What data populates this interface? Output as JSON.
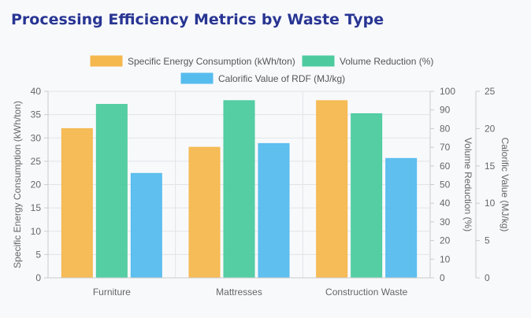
{
  "chart_data": {
    "type": "bar",
    "title": "Processing Efficiency Metrics by Waste Type",
    "categories": [
      "Furniture",
      "Mattresses",
      "Construction Waste"
    ],
    "series": [
      {
        "name": "Specific Energy Consumption (kWh/ton)",
        "axis": "left",
        "color": "#f5b84e",
        "values": [
          32,
          28,
          38
        ]
      },
      {
        "name": "Volume Reduction (%)",
        "axis": "right1",
        "color": "#4dcb9f",
        "values": [
          93,
          95,
          88
        ]
      },
      {
        "name": "Calorific Value of RDF (MJ/kg)",
        "axis": "right2",
        "color": "#56bcee",
        "values": [
          14,
          18,
          16
        ]
      }
    ],
    "axes": {
      "left": {
        "label": "Specific Energy Consumption (kWh/ton)",
        "min": 0,
        "max": 40,
        "ticks": [
          "0",
          "5",
          "10",
          "15",
          "20",
          "25",
          "30",
          "35",
          "40"
        ]
      },
      "right1": {
        "label": "Volume Reduction (%)",
        "min": 0,
        "max": 100,
        "ticks": [
          "0",
          "10",
          "20",
          "30",
          "40",
          "50",
          "60",
          "70",
          "80",
          "90",
          "100"
        ]
      },
      "right2": {
        "label": "Calorific Value (MJ/kg)",
        "min": 0,
        "max": 25,
        "ticks": [
          "0",
          "5",
          "10",
          "15",
          "20",
          "25"
        ]
      }
    },
    "grid": true,
    "legend_position": "top"
  }
}
